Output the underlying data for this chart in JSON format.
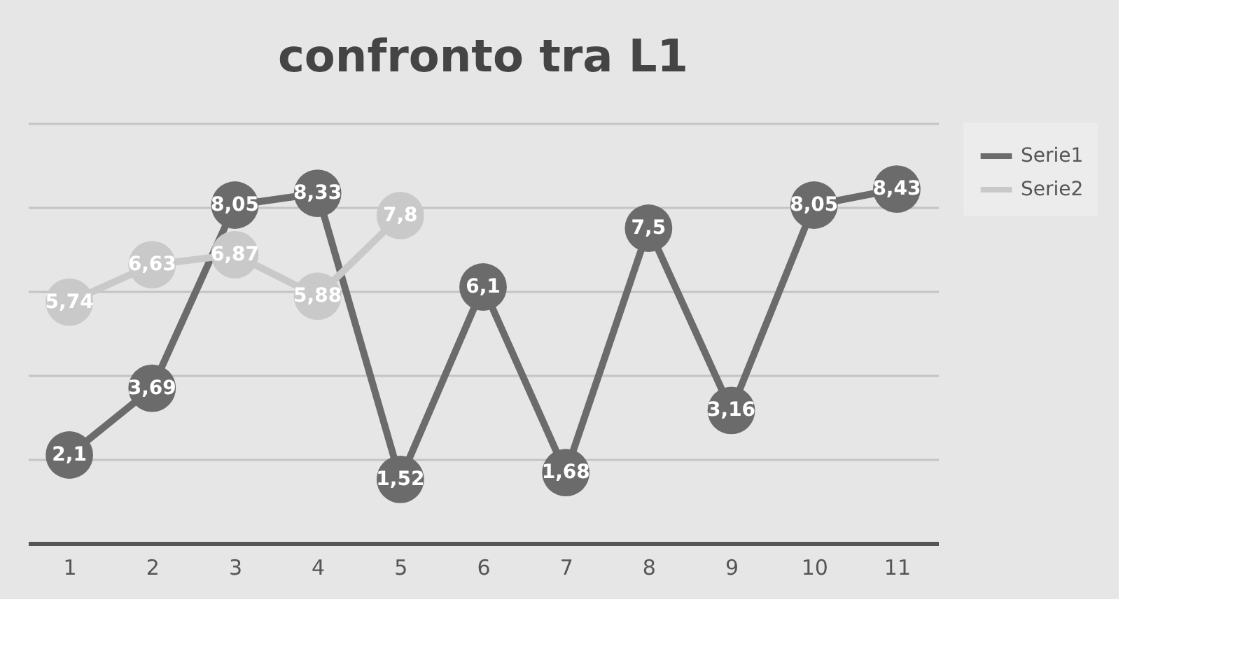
{
  "chart_data": {
    "type": "line",
    "title": "confronto tra L1",
    "categories": [
      "1",
      "2",
      "3",
      "4",
      "5",
      "6",
      "7",
      "8",
      "9",
      "10",
      "11"
    ],
    "series": [
      {
        "name": "Serie1",
        "color": "#6b6b6b",
        "values": [
          2.1,
          3.69,
          8.05,
          8.33,
          1.52,
          6.1,
          1.68,
          7.5,
          3.16,
          8.05,
          8.43
        ],
        "value_labels": [
          "2,1",
          "3,69",
          "8,05",
          "8,33",
          "1,52",
          "6,1",
          "1,68",
          "7,5",
          "3,16",
          "8,05",
          "8,43"
        ]
      },
      {
        "name": "Serie2",
        "color": "#c9c9c9",
        "values": [
          5.74,
          6.63,
          6.87,
          5.88,
          7.8,
          null,
          null,
          null,
          null,
          null,
          null
        ],
        "value_labels": [
          "5,74",
          "6,63",
          "6,87",
          "5,88",
          "7,8",
          null,
          null,
          null,
          null,
          null,
          null
        ]
      }
    ],
    "ylim": [
      0,
      10
    ],
    "yticks": [
      {
        "value": 0,
        "label": null
      },
      {
        "value": 2,
        "label": null
      },
      {
        "value": 4,
        "label": null
      },
      {
        "value": 6,
        "label": null
      },
      {
        "value": 8,
        "label": null
      },
      {
        "value": 10,
        "label": null
      }
    ],
    "grid": "y",
    "legend": "right",
    "marker": "circle",
    "line_style": "solid",
    "tick_labels": "x"
  }
}
